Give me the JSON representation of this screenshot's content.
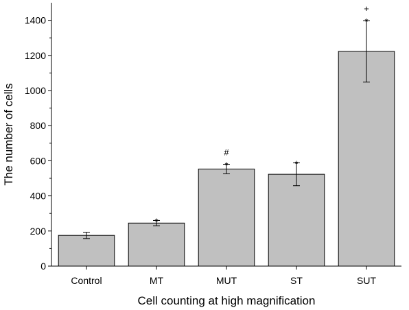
{
  "chart_data": {
    "type": "bar",
    "title": "",
    "xlabel": "Cell counting at high magnification",
    "ylabel": "The number of cells",
    "categories": [
      "Control",
      "MT",
      "MUT",
      "ST",
      "SUT"
    ],
    "values": [
      175,
      245,
      553,
      523,
      1223
    ],
    "error": [
      18,
      15,
      27,
      65,
      175
    ],
    "annotations": [
      [],
      [
        "*"
      ],
      [
        "#",
        "*"
      ],
      [
        "*"
      ],
      [
        "+",
        "*"
      ]
    ],
    "ylim": [
      0,
      1500
    ],
    "yticks": [
      0,
      200,
      400,
      600,
      800,
      1000,
      1200,
      1400
    ],
    "grid": false,
    "legend": "none",
    "bar_color": "#c0c0c0"
  }
}
